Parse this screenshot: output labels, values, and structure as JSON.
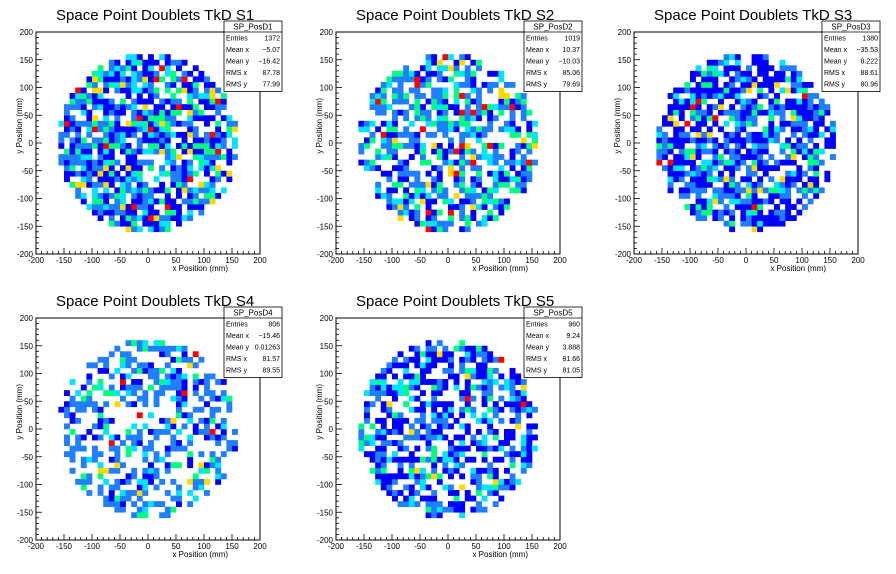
{
  "palette": [
    "#0000ff",
    "#1f7fff",
    "#00e5ff",
    "#00ff80",
    "#ffd800",
    "#ff0000"
  ],
  "chart_data": [
    {
      "type": "heatmap",
      "title": "Space Point Doublets TkD S1",
      "xlabel": "x Position (mm)",
      "ylabel": "y Position (mm)",
      "xlim": [
        -200,
        200
      ],
      "ylim": [
        -200,
        200
      ],
      "xticks": [
        -200,
        -150,
        -100,
        -50,
        0,
        50,
        100,
        150,
        200
      ],
      "yticks": [
        -200,
        -150,
        -100,
        -50,
        0,
        50,
        100,
        150,
        200
      ],
      "bin_size_mm": 10,
      "data_radius_mm": 160,
      "stats": {
        "name": "SP_PosD1",
        "rows": [
          [
            "Entries",
            "1372"
          ],
          [
            "Mean x",
            "−5.07"
          ],
          [
            "Mean y",
            "−16.42"
          ],
          [
            "RMS x",
            "87.78"
          ],
          [
            "RMS y",
            "77.99"
          ]
        ]
      },
      "seed": 11,
      "occupancy": 0.75,
      "color_weights": [
        0.34,
        0.3,
        0.14,
        0.14,
        0.05,
        0.03
      ]
    },
    {
      "type": "heatmap",
      "title": "Space Point Doublets TkD S2",
      "xlabel": "x Position (mm)",
      "ylabel": "y Position (mm)",
      "xlim": [
        -200,
        200
      ],
      "ylim": [
        -200,
        200
      ],
      "xticks": [
        -200,
        -150,
        -100,
        -50,
        0,
        50,
        100,
        150,
        200
      ],
      "yticks": [
        -200,
        -150,
        -100,
        -50,
        0,
        50,
        100,
        150,
        200
      ],
      "bin_size_mm": 10,
      "data_radius_mm": 160,
      "stats": {
        "name": "SP_PosD2",
        "rows": [
          [
            "Entries",
            "1019"
          ],
          [
            "Mean x",
            "10.37"
          ],
          [
            "Mean y",
            "−10.03"
          ],
          [
            "RMS x",
            "85.06"
          ],
          [
            "RMS y",
            "79.69"
          ]
        ]
      },
      "seed": 23,
      "occupancy": 0.62,
      "color_weights": [
        0.22,
        0.4,
        0.14,
        0.17,
        0.04,
        0.03
      ]
    },
    {
      "type": "heatmap",
      "title": "Space Point Doublets TkD S3",
      "xlabel": "x Position (mm)",
      "ylabel": "y Position (mm)",
      "xlim": [
        -200,
        200
      ],
      "ylim": [
        -200,
        200
      ],
      "xticks": [
        -200,
        -150,
        -100,
        -50,
        0,
        50,
        100,
        150,
        200
      ],
      "yticks": [
        -200,
        -150,
        -100,
        -50,
        0,
        50,
        100,
        150,
        200
      ],
      "bin_size_mm": 10,
      "data_radius_mm": 160,
      "stats": {
        "name": "SP_PosD3",
        "rows": [
          [
            "Entries",
            "1380"
          ],
          [
            "Mean x",
            "−35.53"
          ],
          [
            "Mean y",
            "8.222"
          ],
          [
            "RMS x",
            "88.61"
          ],
          [
            "RMS y",
            "80.96"
          ]
        ]
      },
      "seed": 37,
      "occupancy": 0.72,
      "color_weights": [
        0.5,
        0.28,
        0.1,
        0.08,
        0.03,
        0.01
      ]
    },
    {
      "type": "heatmap",
      "title": "Space Point Doublets TkD S4",
      "xlabel": "x Position (mm)",
      "ylabel": "y Position (mm)",
      "xlim": [
        -200,
        200
      ],
      "ylim": [
        -200,
        200
      ],
      "xticks": [
        -200,
        -150,
        -100,
        -50,
        0,
        50,
        100,
        150,
        200
      ],
      "yticks": [
        -200,
        -150,
        -100,
        -50,
        0,
        50,
        100,
        150,
        200
      ],
      "bin_size_mm": 10,
      "data_radius_mm": 160,
      "stats": {
        "name": "SP_PosD4",
        "rows": [
          [
            "Entries",
            "806"
          ],
          [
            "Mean x",
            "−15.46"
          ],
          [
            "Mean y",
            "0.01263"
          ],
          [
            "RMS x",
            "81.57"
          ],
          [
            "RMS y",
            "89.55"
          ]
        ]
      },
      "seed": 41,
      "occupancy": 0.48,
      "color_weights": [
        0.16,
        0.58,
        0.12,
        0.1,
        0.02,
        0.02
      ]
    },
    {
      "type": "heatmap",
      "title": "Space Point Doublets TkD S5",
      "xlabel": "x Position (mm)",
      "ylabel": "y Position (mm)",
      "xlim": [
        -200,
        200
      ],
      "ylim": [
        -200,
        200
      ],
      "xticks": [
        -200,
        -150,
        -100,
        -50,
        0,
        50,
        100,
        150,
        200
      ],
      "yticks": [
        -200,
        -150,
        -100,
        -50,
        0,
        50,
        100,
        150,
        200
      ],
      "bin_size_mm": 10,
      "data_radius_mm": 160,
      "stats": {
        "name": "SP_PosD5",
        "rows": [
          [
            "Entries",
            "960"
          ],
          [
            "Mean x",
            "9.24"
          ],
          [
            "Mean y",
            "3.888"
          ],
          [
            "RMS x",
            "81.66"
          ],
          [
            "RMS y",
            "81.05"
          ]
        ]
      },
      "seed": 53,
      "occupancy": 0.6,
      "color_weights": [
        0.48,
        0.3,
        0.12,
        0.07,
        0.02,
        0.01
      ]
    }
  ]
}
